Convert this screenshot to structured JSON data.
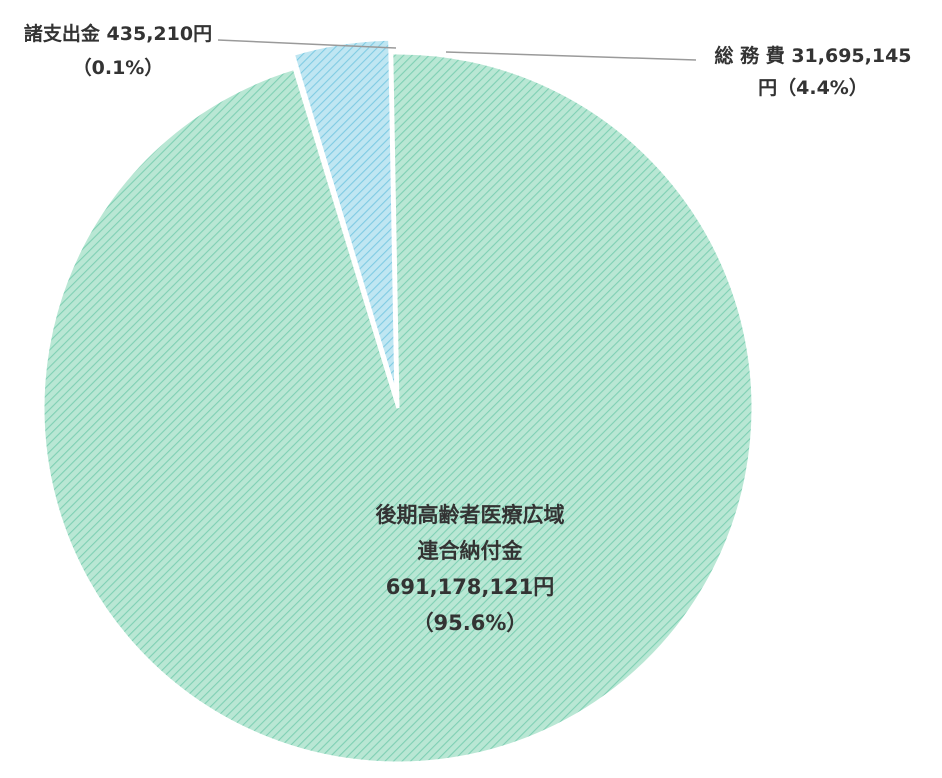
{
  "chart_data": {
    "type": "pie",
    "slices": [
      {
        "label_lines": [
          "後期高齢者医療広域",
          "連合納付金",
          "691,178,121円",
          "（95.6%）"
        ],
        "value": 691178121,
        "percent": 95.6,
        "color": "#b9e7d4",
        "hatch": "#7fd0b4"
      },
      {
        "label_lines": [
          "諸支出金 435,210円",
          "（0.1%）"
        ],
        "value": 435210,
        "percent": 0.1,
        "color": "#b9e7d4",
        "hatch": "#7fd0b4"
      },
      {
        "label_lines": [
          "総 務 費 31,695,145",
          "円（4.4%）"
        ],
        "value": 31695145,
        "percent": 4.4,
        "color": "#bfe6f2",
        "hatch": "#7fcbe3"
      }
    ],
    "legend": "none"
  }
}
